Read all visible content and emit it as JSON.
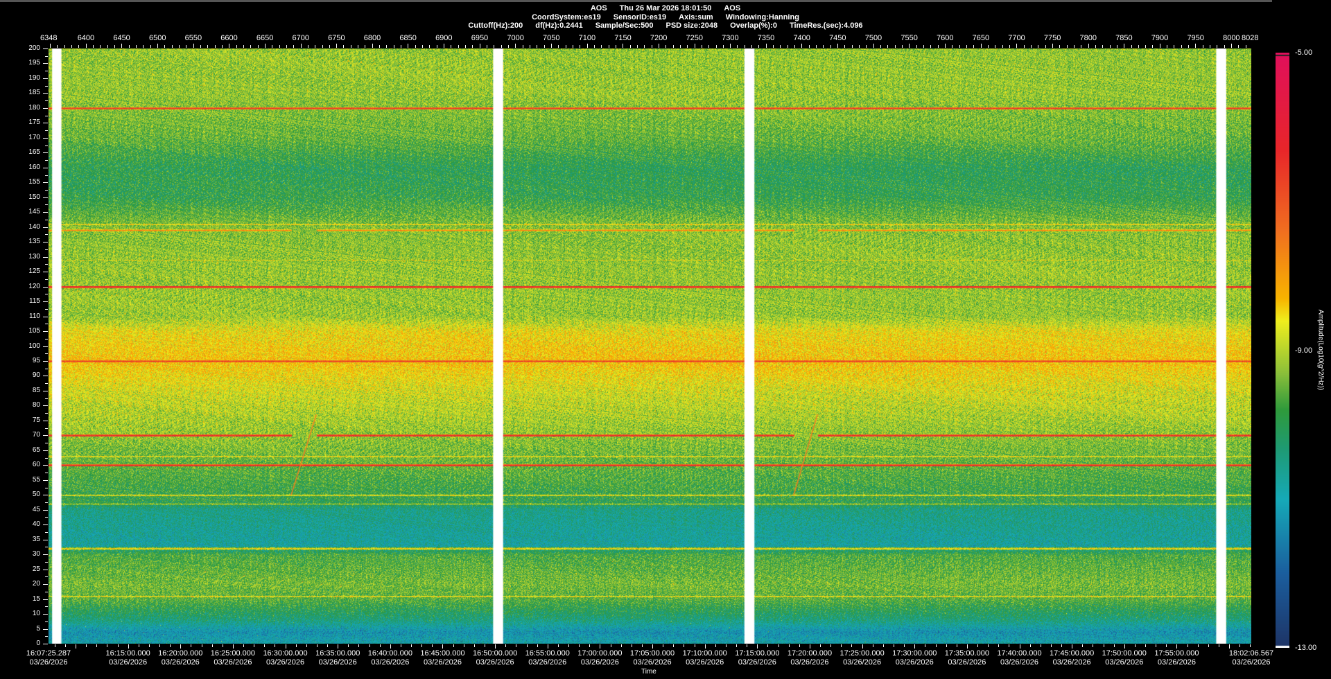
{
  "header": {
    "line1": [
      "AOS",
      "Thu 26 Mar 2026 18:01:50",
      "AOS"
    ],
    "line2": [
      "CoordSystem:es19",
      "SensorID:es19",
      "Axis:sum",
      "Windowing:Hanning"
    ],
    "line3": [
      "Cuttoff(Hz):200",
      "df(Hz):0.2441",
      "Sample/Sec:500",
      "PSD size:2048",
      "Overlap(%):0",
      "TimeRes.(sec):4.096"
    ]
  },
  "chart_data": {
    "type": "heatmap",
    "xlabel": "Time",
    "colorbar_label": "Amplitude(Log10(g^2/Hz))",
    "top_axis": {
      "range": [
        6348,
        8028
      ],
      "ticks": [
        "6348",
        "6400",
        "6450",
        "6500",
        "6550",
        "6600",
        "6650",
        "6700",
        "6750",
        "6800",
        "6850",
        "6900",
        "6950",
        "7000",
        "7050",
        "7100",
        "7150",
        "7200",
        "7250",
        "7300",
        "7350",
        "7400",
        "7450",
        "7500",
        "7550",
        "7600",
        "7650",
        "7700",
        "7750",
        "7800",
        "7850",
        "7900",
        "7950",
        "8000",
        "8028"
      ]
    },
    "y_axis": {
      "range": [
        0,
        200
      ],
      "step": 5
    },
    "time_axis": {
      "range": [
        "16:07:25.287",
        "18:02:06.567"
      ],
      "ticks": [
        {
          "time": "16:07:25.287",
          "date": "03/26/2026"
        },
        {
          "time": "16:15:00.000",
          "date": "03/26/2026"
        },
        {
          "time": "16:20:00.000",
          "date": "03/26/2026"
        },
        {
          "time": "16:25:00.000",
          "date": "03/26/2026"
        },
        {
          "time": "16:30:00.000",
          "date": "03/26/2026"
        },
        {
          "time": "16:35:00.000",
          "date": "03/26/2026"
        },
        {
          "time": "16:40:00.000",
          "date": "03/26/2026"
        },
        {
          "time": "16:45:00.000",
          "date": "03/26/2026"
        },
        {
          "time": "16:50:00.000",
          "date": "03/26/2026"
        },
        {
          "time": "16:55:00.000",
          "date": "03/26/2026"
        },
        {
          "time": "17:00:00.000",
          "date": "03/26/2026"
        },
        {
          "time": "17:05:00.000",
          "date": "03/26/2026"
        },
        {
          "time": "17:10:00.000",
          "date": "03/26/2026"
        },
        {
          "time": "17:15:00.000",
          "date": "03/26/2026"
        },
        {
          "time": "17:20:00.000",
          "date": "03/26/2026"
        },
        {
          "time": "17:25:00.000",
          "date": "03/26/2026"
        },
        {
          "time": "17:30:00.000",
          "date": "03/26/2026"
        },
        {
          "time": "17:35:00.000",
          "date": "03/26/2026"
        },
        {
          "time": "17:40:00.000",
          "date": "03/26/2026"
        },
        {
          "time": "17:45:00.000",
          "date": "03/26/2026"
        },
        {
          "time": "17:50:00.000",
          "date": "03/26/2026"
        },
        {
          "time": "17:55:00.000",
          "date": "03/26/2026"
        },
        {
          "time": "18:02:06.567",
          "date": "03/26/2026"
        }
      ]
    },
    "colorbar": {
      "range": [
        -13,
        -5
      ],
      "ticks": [
        "-5.00",
        "-9.00",
        "-13.00"
      ],
      "stops": [
        [
          -13,
          "#1e3466"
        ],
        [
          -12,
          "#1b5e9e"
        ],
        [
          -11,
          "#16aab8"
        ],
        [
          -10.3,
          "#1f9a72"
        ],
        [
          -9.8,
          "#2f9a3c"
        ],
        [
          -9.3,
          "#8cc03a"
        ],
        [
          -8.6,
          "#f0ef1e"
        ],
        [
          -8.3,
          "#f8b400"
        ],
        [
          -7.4,
          "#f07020"
        ],
        [
          -6.3,
          "#e8262a"
        ],
        [
          -5,
          "#e0105c"
        ]
      ]
    },
    "data_gaps_samples": [
      [
        6353,
        6366
      ],
      [
        6969,
        6983
      ],
      [
        7320,
        7334
      ],
      [
        7979,
        7993
      ]
    ],
    "background_bands_hz_level": [
      [
        0,
        -10.9
      ],
      [
        4,
        -11.3
      ],
      [
        8,
        -10.4
      ],
      [
        15,
        -9.6
      ],
      [
        20,
        -9.4
      ],
      [
        30,
        -9.7
      ],
      [
        33,
        -10.8
      ],
      [
        45,
        -10.5
      ],
      [
        48,
        -9.9
      ],
      [
        58,
        -9.6
      ],
      [
        75,
        -9.1
      ],
      [
        85,
        -8.8
      ],
      [
        95,
        -8.3
      ],
      [
        105,
        -8.6
      ],
      [
        110,
        -9.2
      ],
      [
        125,
        -9.2
      ],
      [
        140,
        -9.3
      ],
      [
        150,
        -9.9
      ],
      [
        160,
        -10.0
      ],
      [
        170,
        -9.5
      ],
      [
        185,
        -9.2
      ],
      [
        200,
        -9.2
      ]
    ],
    "tonal_lines_hz_level": [
      [
        180,
        -6.6
      ],
      [
        141,
        -8.6
      ],
      [
        139,
        -7.6
      ],
      [
        129,
        -8.6
      ],
      [
        120,
        -6.4
      ],
      [
        95,
        -6.6
      ],
      [
        70,
        -6.5
      ],
      [
        63,
        -8.7
      ],
      [
        60,
        -6.5
      ],
      [
        50,
        -8.8
      ],
      [
        47,
        -8.9
      ],
      [
        32,
        -8.6
      ],
      [
        16,
        -8.7
      ]
    ],
    "sweeps": [
      {
        "samples": [
          6687,
          6722
        ],
        "hz": [
          50,
          77
        ]
      },
      {
        "samples": [
          7389,
          7422
        ],
        "hz": [
          50,
          77
        ]
      }
    ]
  }
}
